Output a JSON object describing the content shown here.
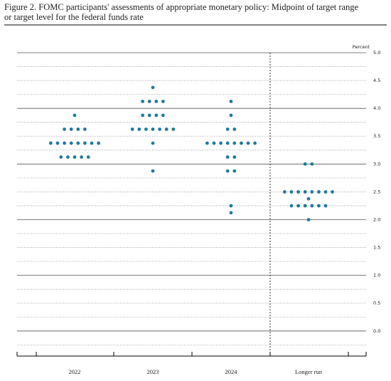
{
  "chart_data": {
    "type": "dot",
    "title": [
      "Figure 2.  FOMC participants' assessments of appropriate monetary policy:  Midpoint of target range",
      "or target level for the federal funds rate"
    ],
    "y_label": "Percent",
    "categories": [
      "2022",
      "2023",
      "2024",
      "Longer run"
    ],
    "values": [
      [
        3.875,
        3.625,
        3.625,
        3.625,
        3.625,
        3.375,
        3.375,
        3.375,
        3.375,
        3.375,
        3.375,
        3.375,
        3.375,
        3.125,
        3.125,
        3.125,
        3.125,
        3.125
      ],
      [
        4.375,
        4.125,
        4.125,
        4.125,
        4.125,
        3.875,
        3.875,
        3.875,
        3.875,
        3.625,
        3.625,
        3.625,
        3.625,
        3.625,
        3.625,
        3.625,
        3.375,
        2.875
      ],
      [
        4.125,
        3.875,
        3.625,
        3.625,
        3.375,
        3.375,
        3.375,
        3.375,
        3.375,
        3.375,
        3.375,
        3.375,
        3.125,
        3.125,
        2.875,
        2.875,
        2.25,
        2.125
      ],
      [
        3.0,
        3.0,
        2.5,
        2.5,
        2.5,
        2.5,
        2.5,
        2.5,
        2.5,
        2.5,
        2.375,
        2.25,
        2.25,
        2.25,
        2.25,
        2.25,
        2.25,
        2.0
      ]
    ],
    "color": "#1f7a9e",
    "ylim": [
      -0.45,
      5.0
    ],
    "yticks": [
      {
        "value": 0,
        "label": "0.0"
      },
      0.5,
      {
        "value": 1,
        "label": "1.0"
      },
      1.5,
      {
        "value": 2,
        "label": "2.0"
      },
      2.5,
      {
        "value": 3,
        "label": "3.0"
      },
      3.5,
      {
        "value": 4,
        "label": "4.0"
      },
      4.5,
      {
        "value": 5,
        "label": "5.0"
      }
    ],
    "grid": true
  }
}
